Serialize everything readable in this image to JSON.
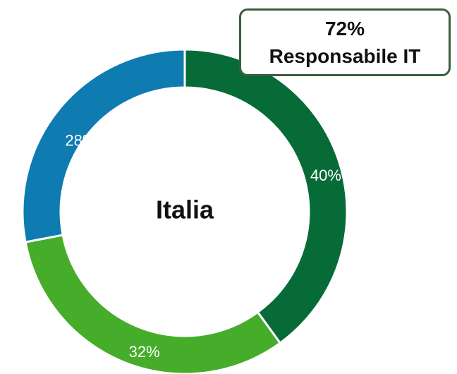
{
  "chart_data": {
    "type": "pie",
    "donut": true,
    "center_label": "Italia",
    "slices": [
      {
        "label": "40%",
        "value": 40,
        "color": "#076b38"
      },
      {
        "label": "32%",
        "value": 32,
        "color": "#46ad2b"
      },
      {
        "label": "28%",
        "value": 28,
        "color": "#0e7bb1"
      }
    ],
    "start_angle_deg": 0,
    "direction": "clockwise",
    "callout": {
      "percent": "72%",
      "label": "Responsabile IT",
      "border_color": "#3b5e3b"
    }
  }
}
